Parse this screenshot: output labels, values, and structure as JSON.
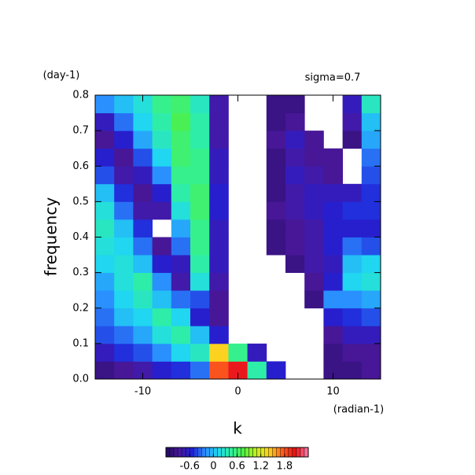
{
  "chart_data": {
    "type": "heatmap",
    "x_unit": "(radian-1)",
    "y_unit": "(day-1)",
    "annotation": "sigma=0.7",
    "xlabel": "k",
    "ylabel": "frequency",
    "xlim": [
      -15,
      15
    ],
    "ylim": [
      0,
      0.8
    ],
    "xticks": [
      -10,
      0,
      10
    ],
    "yticks": [
      {
        "value": 0,
        "label": "0.0"
      },
      0.1,
      0.2,
      0.3,
      0.4,
      0.5,
      0.6,
      0.7,
      0.8
    ],
    "clim": [
      -1.2,
      2.4
    ],
    "cticks": [
      -0.6,
      0,
      0.6,
      1.2,
      1.8
    ],
    "colormap": [
      "#200a60",
      "#4a189c",
      "#2020d8",
      "#2a8cff",
      "#20d8f0",
      "#30f0a0",
      "#50f040",
      "#c8f020",
      "#ffd020",
      "#ff6020",
      "#e81010",
      "#ff80b0"
    ],
    "x": [
      -14,
      -12,
      -10,
      -8,
      -6,
      -4,
      -2,
      0,
      2,
      4,
      6,
      8,
      10,
      12,
      14
    ],
    "y": [
      0.025,
      0.075,
      0.125,
      0.175,
      0.225,
      0.275,
      0.325,
      0.375,
      0.425,
      0.475,
      0.525,
      0.575,
      0.625,
      0.675,
      0.725,
      0.775
    ],
    "z": [
      [
        -1.0,
        -0.9,
        -0.8,
        -0.6,
        -0.5,
        -0.3,
        1.8,
        2.1,
        0.4,
        -0.6,
        null,
        null,
        -1.0,
        -1.0,
        -0.9
      ],
      [
        -0.7,
        -0.5,
        -0.4,
        -0.2,
        0.1,
        0.3,
        1.4,
        0.5,
        -0.7,
        null,
        null,
        null,
        -1.0,
        -0.9,
        -0.9
      ],
      [
        -0.4,
        -0.3,
        -0.1,
        0.2,
        0.4,
        0.0,
        -0.6,
        null,
        null,
        null,
        null,
        null,
        -0.9,
        -0.7,
        -0.7
      ],
      [
        -0.3,
        0.0,
        0.1,
        0.4,
        0.1,
        -0.6,
        -0.9,
        null,
        null,
        null,
        null,
        null,
        -0.6,
        -0.5,
        -0.4
      ],
      [
        -0.2,
        0.1,
        0.3,
        0.0,
        -0.3,
        -0.4,
        -0.9,
        null,
        null,
        null,
        null,
        -1.0,
        -0.2,
        -0.2,
        -0.1
      ],
      [
        -0.1,
        0.2,
        0.4,
        -0.2,
        -0.8,
        0.2,
        -0.8,
        null,
        null,
        null,
        null,
        -0.9,
        -0.6,
        0.1,
        0.2
      ],
      [
        0.1,
        0.2,
        0.0,
        -0.6,
        -0.7,
        0.4,
        -0.7,
        null,
        null,
        null,
        -1.0,
        -0.8,
        -0.7,
        0.0,
        0.1
      ],
      [
        0.2,
        0.1,
        -0.3,
        -0.9,
        -0.3,
        0.5,
        -0.7,
        null,
        null,
        -1.0,
        -0.9,
        -0.8,
        -0.6,
        -0.3,
        -0.4
      ],
      [
        0.3,
        0.0,
        -0.5,
        null,
        -0.1,
        0.5,
        -0.7,
        null,
        null,
        -1.0,
        -0.9,
        -0.8,
        -0.6,
        -0.6,
        -0.6
      ],
      [
        0.2,
        -0.3,
        -0.8,
        -0.8,
        0.2,
        0.6,
        -0.6,
        null,
        null,
        -0.9,
        -0.8,
        -0.7,
        -0.6,
        -0.5,
        -0.5
      ],
      [
        0.0,
        -0.5,
        -0.9,
        -0.6,
        0.4,
        0.6,
        -0.6,
        null,
        null,
        -1.0,
        -0.8,
        -0.7,
        -0.7,
        -0.7,
        -0.5
      ],
      [
        -0.4,
        -0.8,
        -0.7,
        -0.2,
        0.5,
        0.5,
        -0.7,
        null,
        null,
        -1.0,
        -0.7,
        -0.8,
        -0.9,
        null,
        -0.4
      ],
      [
        -0.6,
        -0.9,
        -0.4,
        0.1,
        0.6,
        0.5,
        -0.7,
        null,
        null,
        -1.0,
        -0.8,
        -0.9,
        -0.9,
        null,
        -0.3
      ],
      [
        -0.9,
        -0.6,
        -0.1,
        0.3,
        0.6,
        0.4,
        -0.8,
        null,
        null,
        -0.9,
        -0.7,
        -0.9,
        null,
        -1.0,
        -0.1
      ],
      [
        -0.7,
        -0.3,
        0.1,
        0.4,
        0.7,
        0.4,
        -0.8,
        null,
        null,
        -1.0,
        -0.9,
        null,
        null,
        -0.8,
        0.0
      ],
      [
        -0.2,
        0.0,
        0.2,
        0.5,
        0.6,
        0.3,
        -0.8,
        null,
        null,
        -1.0,
        -1.0,
        null,
        null,
        -0.7,
        0.3
      ]
    ]
  }
}
